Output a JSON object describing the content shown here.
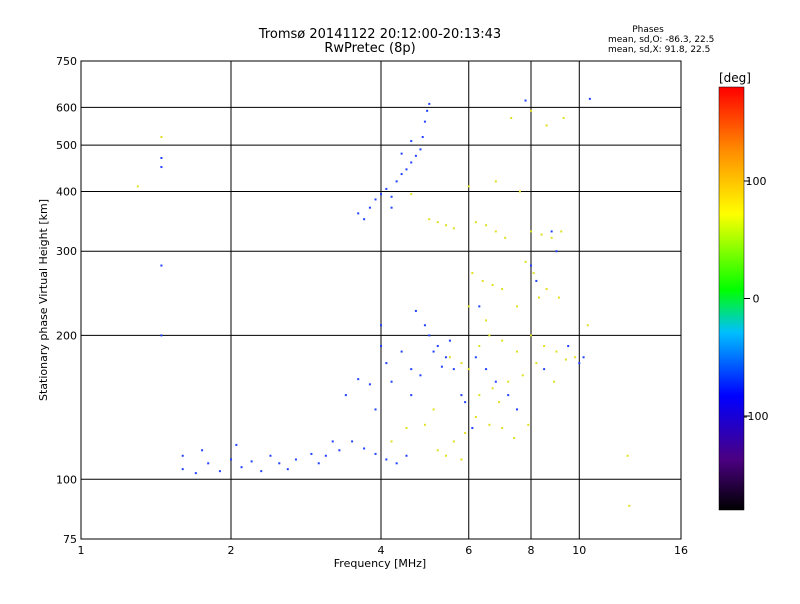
{
  "chart_data": {
    "type": "scatter",
    "title": "Tromsø 20141122 20:12:00-20:13:43",
    "subtitle": "RwPretec (8p)",
    "xlabel": "Frequency [MHz]",
    "ylabel": "Stationary phase Virtual Height [km]",
    "x_scale": "log",
    "y_scale": "log",
    "xlim": [
      1,
      16
    ],
    "ylim": [
      75,
      750
    ],
    "x_ticks": [
      1,
      2,
      4,
      6,
      8,
      10,
      16
    ],
    "y_ticks": [
      75,
      100,
      200,
      300,
      400,
      500,
      600,
      750
    ],
    "grid": true,
    "color_scale": {
      "label": "[deg]",
      "range": [
        -180,
        180
      ],
      "ticks": [
        100,
        0,
        -100
      ],
      "colors": [
        "#000000",
        "#4b0082",
        "#0000ff",
        "#00bfff",
        "#00ff00",
        "#ffff00",
        "#ff8c00",
        "#ff0000"
      ]
    },
    "legend": {
      "title": "Phases",
      "lines": [
        "mean, sd,O: -86.3, 22.5",
        "mean, sd,X:  91.8, 22.5"
      ]
    },
    "series": [
      {
        "mode": "O",
        "color": "#2040ff",
        "points": [
          [
            1.6,
            105
          ],
          [
            1.7,
            103
          ],
          [
            1.8,
            108
          ],
          [
            1.9,
            104
          ],
          [
            2.0,
            110
          ],
          [
            2.1,
            106
          ],
          [
            2.2,
            109
          ],
          [
            2.3,
            104
          ],
          [
            2.4,
            112
          ],
          [
            2.5,
            108
          ],
          [
            2.7,
            110
          ],
          [
            2.9,
            113
          ],
          [
            3.1,
            112
          ],
          [
            3.3,
            115
          ],
          [
            3.5,
            120
          ],
          [
            3.7,
            116
          ],
          [
            3.9,
            113
          ],
          [
            4.1,
            110
          ],
          [
            4.3,
            108
          ],
          [
            4.5,
            112
          ],
          [
            3.4,
            150
          ],
          [
            3.6,
            162
          ],
          [
            3.8,
            158
          ],
          [
            4.0,
            190
          ],
          [
            4.0,
            210
          ],
          [
            4.1,
            175
          ],
          [
            4.2,
            160
          ],
          [
            4.4,
            185
          ],
          [
            4.6,
            170
          ],
          [
            4.8,
            165
          ],
          [
            5.0,
            200
          ],
          [
            5.2,
            190
          ],
          [
            5.4,
            180
          ],
          [
            5.6,
            170
          ],
          [
            4.7,
            225
          ],
          [
            4.9,
            210
          ],
          [
            5.1,
            185
          ],
          [
            5.3,
            172
          ],
          [
            5.5,
            195
          ],
          [
            5.8,
            150
          ],
          [
            3.8,
            370
          ],
          [
            3.9,
            385
          ],
          [
            4.0,
            395
          ],
          [
            4.1,
            405
          ],
          [
            4.2,
            390
          ],
          [
            4.3,
            420
          ],
          [
            4.4,
            435
          ],
          [
            4.5,
            445
          ],
          [
            4.6,
            460
          ],
          [
            4.7,
            475
          ],
          [
            4.8,
            490
          ],
          [
            4.85,
            520
          ],
          [
            4.9,
            560
          ],
          [
            5.0,
            610
          ],
          [
            4.95,
            590
          ],
          [
            4.6,
            510
          ],
          [
            4.4,
            480
          ],
          [
            3.6,
            360
          ],
          [
            3.7,
            350
          ],
          [
            4.2,
            370
          ],
          [
            6.2,
            180
          ],
          [
            6.5,
            170
          ],
          [
            6.8,
            160
          ],
          [
            7.2,
            150
          ],
          [
            8.0,
            280
          ],
          [
            8.2,
            260
          ],
          [
            8.8,
            330
          ],
          [
            9.0,
            300
          ],
          [
            10.0,
            175
          ],
          [
            10.2,
            180
          ],
          [
            1.45,
            470
          ],
          [
            1.45,
            450
          ],
          [
            1.45,
            280
          ],
          [
            1.45,
            200
          ],
          [
            1.6,
            112
          ],
          [
            1.75,
            115
          ],
          [
            2.05,
            118
          ],
          [
            2.6,
            105
          ],
          [
            3.0,
            108
          ],
          [
            3.2,
            120
          ],
          [
            7.8,
            620
          ],
          [
            10.5,
            625
          ],
          [
            6.3,
            230
          ],
          [
            5.9,
            145
          ],
          [
            6.1,
            128
          ],
          [
            7.5,
            140
          ],
          [
            8.5,
            170
          ],
          [
            9.5,
            190
          ],
          [
            3.9,
            140
          ],
          [
            4.6,
            150
          ]
        ]
      },
      {
        "mode": "X",
        "color": "#e0e020",
        "points": [
          [
            5.0,
            350
          ],
          [
            5.2,
            345
          ],
          [
            5.4,
            340
          ],
          [
            5.6,
            335
          ],
          [
            6.2,
            345
          ],
          [
            6.5,
            340
          ],
          [
            6.8,
            330
          ],
          [
            7.1,
            320
          ],
          [
            8.0,
            330
          ],
          [
            8.4,
            325
          ],
          [
            8.8,
            320
          ],
          [
            9.2,
            330
          ],
          [
            6.1,
            270
          ],
          [
            6.4,
            260
          ],
          [
            6.7,
            255
          ],
          [
            7.0,
            250
          ],
          [
            7.8,
            285
          ],
          [
            8.1,
            270
          ],
          [
            8.6,
            250
          ],
          [
            9.1,
            240
          ],
          [
            5.5,
            180
          ],
          [
            5.8,
            175
          ],
          [
            6.0,
            170
          ],
          [
            6.3,
            190
          ],
          [
            6.6,
            200
          ],
          [
            7.0,
            195
          ],
          [
            7.5,
            185
          ],
          [
            8.0,
            200
          ],
          [
            8.5,
            190
          ],
          [
            9.0,
            185
          ],
          [
            5.6,
            120
          ],
          [
            5.9,
            125
          ],
          [
            6.2,
            135
          ],
          [
            6.6,
            130
          ],
          [
            7.0,
            128
          ],
          [
            7.4,
            122
          ],
          [
            7.9,
            130
          ],
          [
            5.2,
            115
          ],
          [
            5.4,
            112
          ],
          [
            5.8,
            110
          ],
          [
            6.3,
            150
          ],
          [
            6.7,
            155
          ],
          [
            7.2,
            160
          ],
          [
            7.7,
            165
          ],
          [
            8.2,
            175
          ],
          [
            9.4,
            178
          ],
          [
            9.8,
            180
          ],
          [
            10.4,
            210
          ],
          [
            12.5,
            112
          ],
          [
            12.6,
            88
          ],
          [
            7.3,
            570
          ],
          [
            8.0,
            590
          ],
          [
            8.6,
            550
          ],
          [
            9.3,
            570
          ],
          [
            4.6,
            395
          ],
          [
            6.0,
            410
          ],
          [
            6.8,
            420
          ],
          [
            7.6,
            400
          ],
          [
            1.45,
            520
          ],
          [
            1.3,
            410
          ],
          [
            6.0,
            230
          ],
          [
            6.5,
            215
          ],
          [
            7.5,
            230
          ],
          [
            8.3,
            240
          ],
          [
            4.2,
            120
          ],
          [
            4.5,
            128
          ],
          [
            4.9,
            130
          ],
          [
            5.1,
            140
          ],
          [
            6.9,
            145
          ],
          [
            8.9,
            160
          ]
        ]
      }
    ]
  }
}
